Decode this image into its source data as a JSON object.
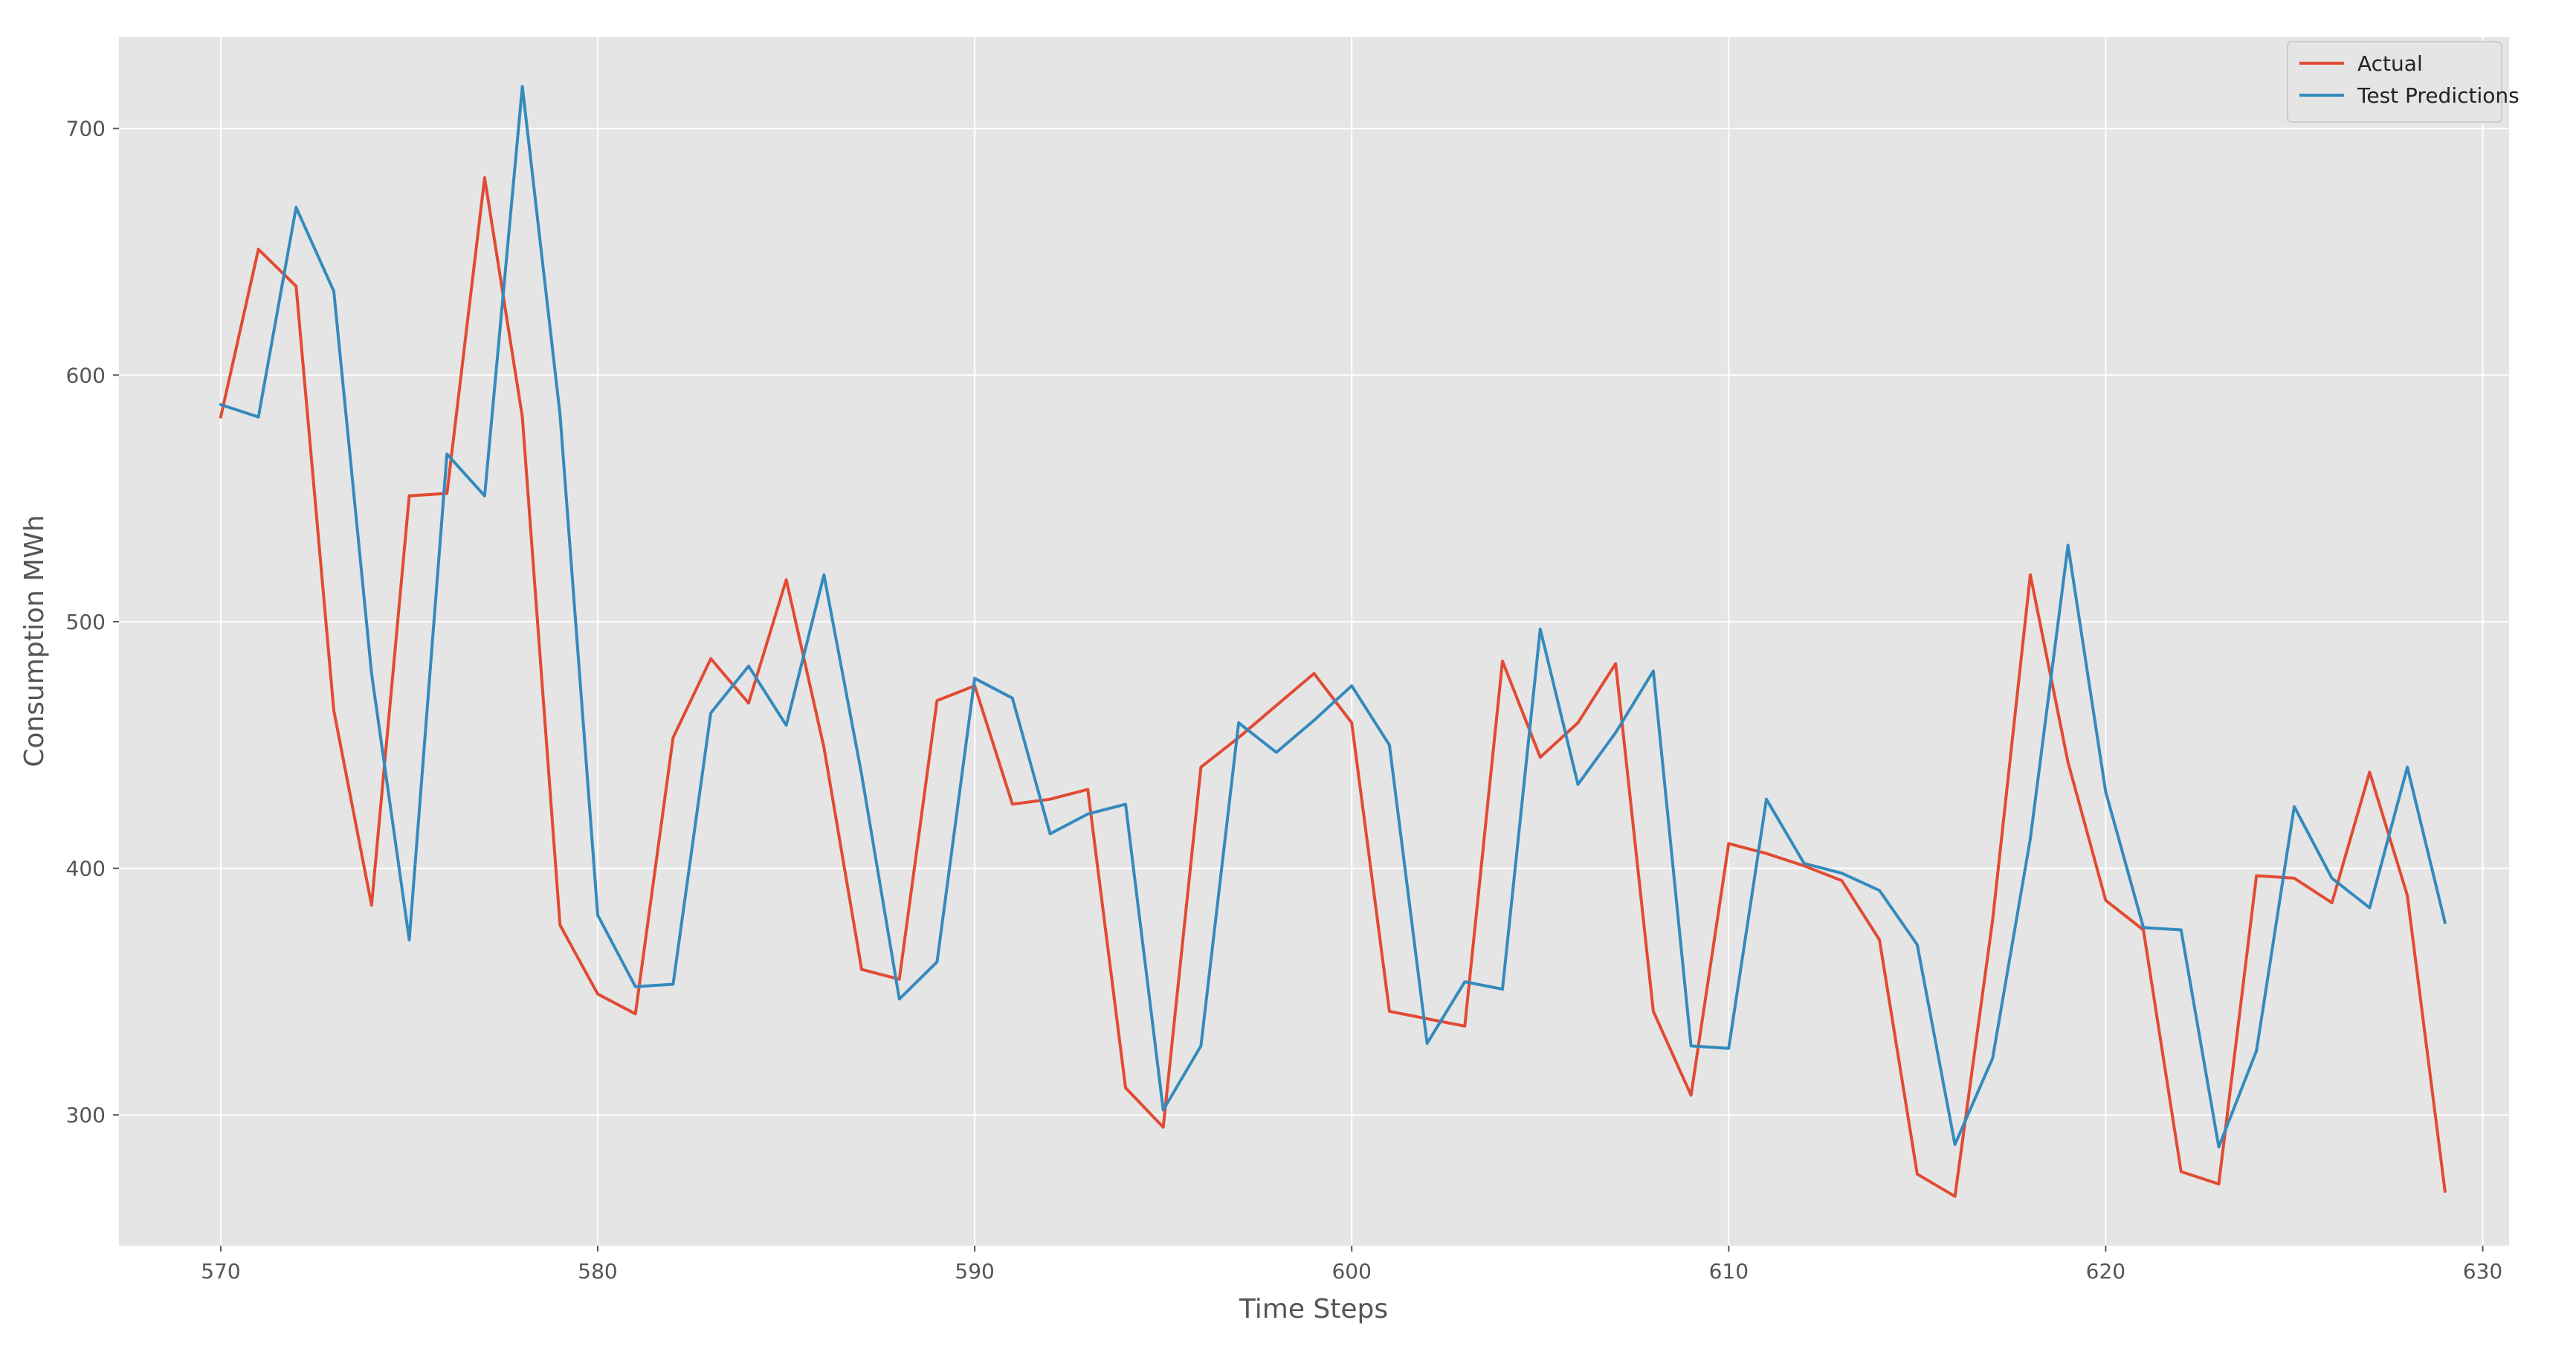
{
  "chart_data": {
    "type": "line",
    "title": "",
    "xlabel": "Time Steps",
    "ylabel": "Consumption MWh",
    "xlim": [
      567.3,
      630.7
    ],
    "ylim": [
      247,
      737
    ],
    "xticks": [
      570,
      580,
      590,
      600,
      610,
      620,
      630
    ],
    "yticks": [
      300,
      400,
      500,
      600,
      700
    ],
    "grid": true,
    "legend_position": "top-right",
    "background": "#e5e5e5",
    "x": [
      570,
      571,
      572,
      573,
      574,
      575,
      576,
      577,
      578,
      579,
      580,
      581,
      582,
      583,
      584,
      585,
      586,
      587,
      588,
      589,
      590,
      591,
      592,
      593,
      594,
      595,
      596,
      597,
      598,
      599,
      600,
      601,
      602,
      603,
      604,
      605,
      606,
      607,
      608,
      609,
      610,
      611,
      612,
      613,
      614,
      615,
      616,
      617,
      618,
      619,
      620,
      621,
      622,
      623,
      624,
      625,
      626,
      627,
      628,
      629
    ],
    "series": [
      {
        "name": "Actual",
        "color": "#E24A33",
        "values": [
          583,
          651,
          636,
          464,
          385,
          551,
          552,
          680,
          583,
          377,
          349,
          341,
          453,
          485,
          467,
          517,
          449,
          359,
          355,
          468,
          474,
          426,
          428,
          432,
          311,
          295,
          441,
          453,
          466,
          479,
          459,
          342,
          339,
          336,
          484,
          445,
          459,
          483,
          342,
          308,
          410,
          406,
          401,
          395,
          371,
          276,
          267,
          379,
          519,
          443,
          387,
          375,
          277,
          272,
          397,
          396,
          386,
          439,
          389,
          269
        ]
      },
      {
        "name": "Test Predictions",
        "color": "#348ABD",
        "values": [
          588,
          583,
          668,
          634,
          479,
          371,
          568,
          551,
          717,
          584,
          381,
          352,
          353,
          463,
          482,
          458,
          519,
          438,
          347,
          362,
          477,
          469,
          414,
          422,
          426,
          302,
          328,
          459,
          447,
          460,
          474,
          450,
          329,
          354,
          351,
          497,
          434,
          455,
          480,
          328,
          327,
          428,
          402,
          398,
          391,
          369,
          288,
          323,
          412,
          531,
          431,
          376,
          375,
          287,
          326,
          425,
          396,
          384,
          441,
          378
        ]
      }
    ]
  }
}
